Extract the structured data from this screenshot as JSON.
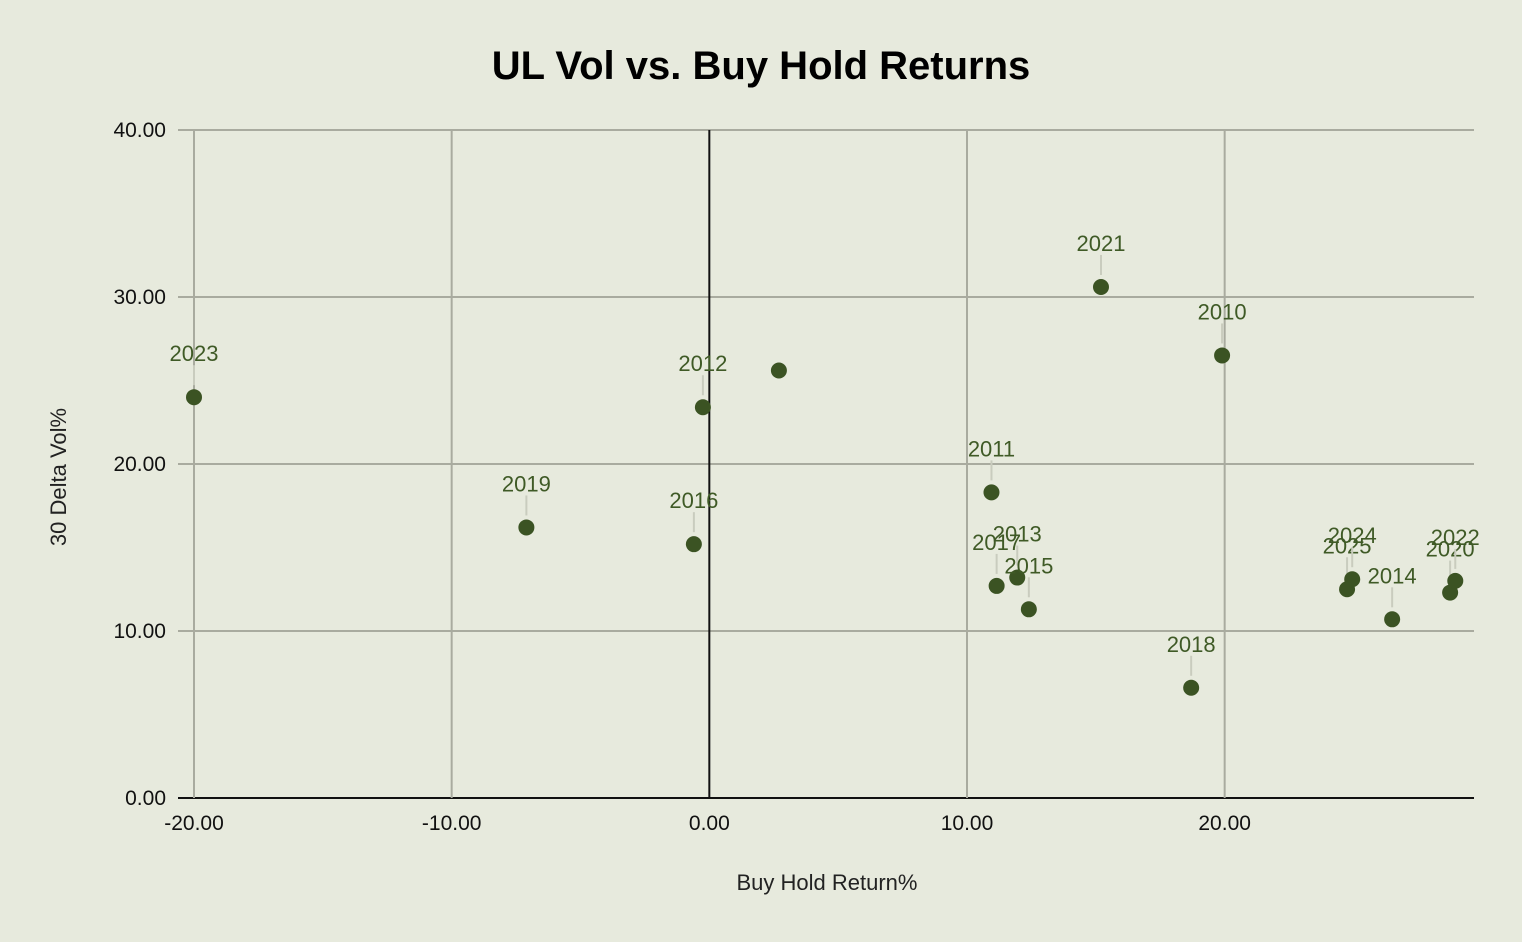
{
  "chart_data": {
    "type": "scatter",
    "title": "UL Vol vs. Buy Hold Returns",
    "xlabel": "Buy Hold Return%",
    "ylabel": "30 Delta Vol%",
    "xlim": [
      -20,
      29.5
    ],
    "ylim": [
      0,
      40
    ],
    "xticks": [
      "-20.00",
      "-10.00",
      "0.00",
      "10.00",
      "20.00"
    ],
    "yticks": [
      "0.00",
      "10.00",
      "20.00",
      "30.00",
      "40.00"
    ],
    "grid": true,
    "legend": "none",
    "marker_color": "#3b5323",
    "points": [
      {
        "label": "2023",
        "x": -20.0,
        "y": 24.0
      },
      {
        "label": "2019",
        "x": -7.1,
        "y": 16.2
      },
      {
        "label": "2016",
        "x": -0.6,
        "y": 15.2
      },
      {
        "label": "2012",
        "x": -0.25,
        "y": 23.4
      },
      {
        "label": "",
        "x": 2.7,
        "y": 25.6
      },
      {
        "label": "2011",
        "x": 10.95,
        "y": 18.3
      },
      {
        "label": "2017",
        "x": 11.15,
        "y": 12.7
      },
      {
        "label": "2013",
        "x": 11.95,
        "y": 13.2
      },
      {
        "label": "2015",
        "x": 12.4,
        "y": 11.3
      },
      {
        "label": "2021",
        "x": 15.2,
        "y": 30.6
      },
      {
        "label": "2018",
        "x": 18.7,
        "y": 6.6
      },
      {
        "label": "2010",
        "x": 19.9,
        "y": 26.5
      },
      {
        "label": "2025",
        "x": 24.75,
        "y": 12.5
      },
      {
        "label": "2024",
        "x": 24.95,
        "y": 13.1
      },
      {
        "label": "2014",
        "x": 26.5,
        "y": 10.7
      },
      {
        "label": "2020",
        "x": 28.75,
        "y": 12.3
      },
      {
        "label": "2022",
        "x": 28.95,
        "y": 13.0
      }
    ]
  }
}
